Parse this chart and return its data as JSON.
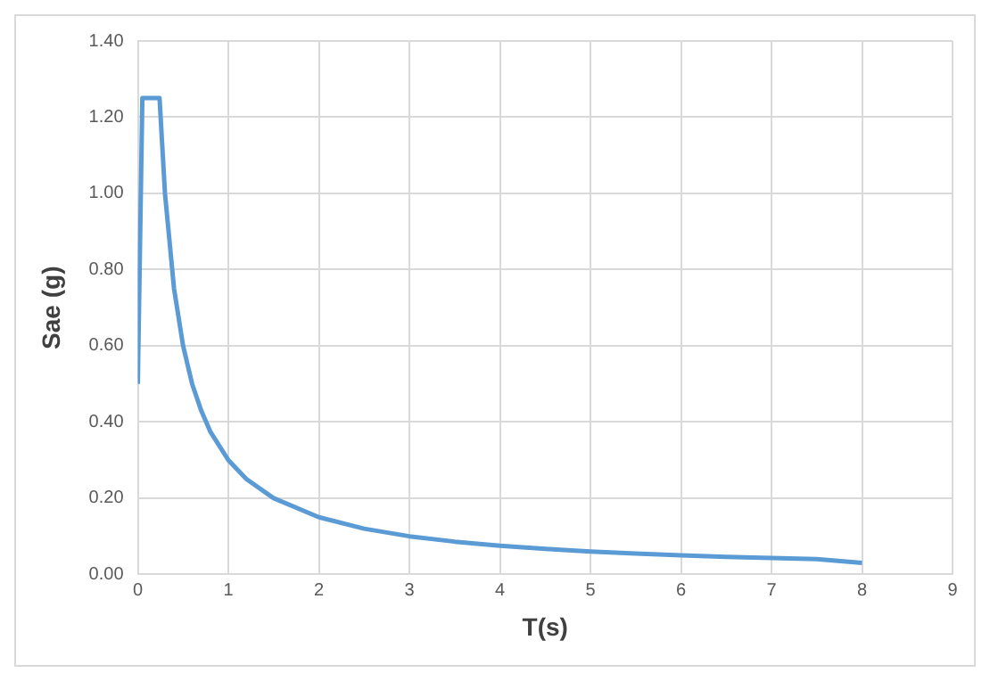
{
  "chart_data": {
    "type": "line",
    "xlabel": "T(s)",
    "ylabel": "Sae (g)",
    "xlim": [
      0,
      9
    ],
    "xticks": [
      0,
      1,
      2,
      3,
      4,
      5,
      6,
      7,
      8,
      9
    ],
    "ylim": [
      0,
      1.4
    ],
    "yticks": [
      {
        "value": 0,
        "label": "0.00"
      },
      {
        "value": 0.2,
        "label": "0.20"
      },
      {
        "value": 0.4,
        "label": "0.40"
      },
      {
        "value": 0.6,
        "label": "0.60"
      },
      {
        "value": 0.8,
        "label": "0.80"
      },
      {
        "value": 1.0,
        "label": "1.00"
      },
      {
        "value": 1.2,
        "label": "1.20"
      },
      {
        "value": 1.4,
        "label": "1.40"
      }
    ],
    "grid": true,
    "legend": false,
    "marker": "none",
    "line_style": "solid",
    "series": [
      {
        "color": "#5b9bd5",
        "x": [
          0,
          0.05,
          0.24,
          0.3,
          0.4,
          0.5,
          0.6,
          0.7,
          0.8,
          1.0,
          1.2,
          1.5,
          2.0,
          2.5,
          3.0,
          3.5,
          4.0,
          4.5,
          5.0,
          5.5,
          6.0,
          6.5,
          7.0,
          7.5,
          8.0
        ],
        "values": [
          0.5,
          1.25,
          1.25,
          1.0,
          0.75,
          0.6,
          0.5,
          0.43,
          0.375,
          0.3,
          0.25,
          0.2,
          0.15,
          0.12,
          0.1,
          0.086,
          0.075,
          0.067,
          0.06,
          0.055,
          0.05,
          0.046,
          0.043,
          0.04,
          0.03
        ]
      }
    ]
  }
}
